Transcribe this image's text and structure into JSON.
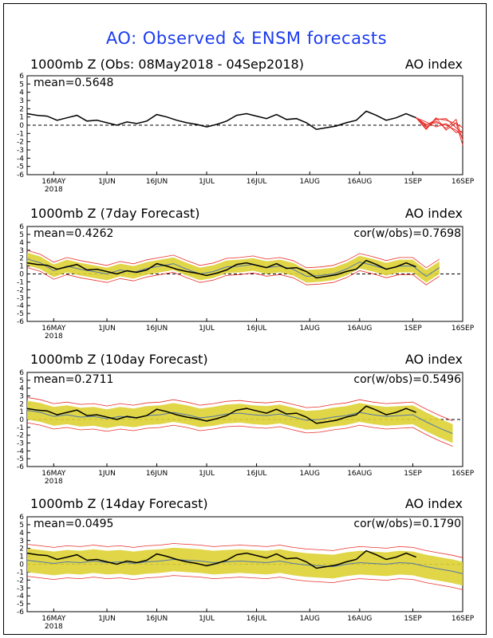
{
  "title": "AO: Observed & ENSM forecasts",
  "colors": {
    "title": "#1d3cf0",
    "observed": "#000000",
    "ensemble": "#e8302b",
    "spread": "#ddd233",
    "zero_line": "#000000"
  },
  "chart_data": [
    {
      "type": "line",
      "title": "1000mb Z (Obs: 08May2018 - 04Sep2018)",
      "index_label": "AO index",
      "stats_left": "mean=0.5648",
      "stats_right": "",
      "ylim": [
        -6,
        6
      ],
      "y_ticks": [
        6,
        5,
        4,
        3,
        2,
        1,
        0,
        -1,
        -2,
        -3,
        -4,
        -5,
        -6
      ],
      "x_ticks": [
        {
          "label": "16MAY",
          "sub": "2018",
          "day": 8
        },
        {
          "label": "1JUN",
          "sub": "",
          "day": 24
        },
        {
          "label": "16JUN",
          "sub": "",
          "day": 39
        },
        {
          "label": "1JUL",
          "sub": "",
          "day": 54
        },
        {
          "label": "16JUL",
          "sub": "",
          "day": 69
        },
        {
          "label": "1AUG",
          "sub": "",
          "day": 85
        },
        {
          "label": "16AUG",
          "sub": "",
          "day": 100
        },
        {
          "label": "1SEP",
          "sub": "",
          "day": 116
        },
        {
          "label": "16SEP",
          "sub": "",
          "day": 131
        }
      ],
      "xlim": [
        0,
        131
      ],
      "series": [
        {
          "kind": "observed",
          "x": [
            0,
            3,
            6,
            9,
            12,
            15,
            18,
            21,
            24,
            27,
            30,
            33,
            36,
            39,
            42,
            45,
            48,
            51,
            54,
            57,
            60,
            63,
            66,
            69,
            72,
            75,
            78,
            81,
            84,
            87,
            90,
            93,
            96,
            99,
            102,
            105,
            108,
            111,
            114,
            117
          ],
          "values": [
            1.4,
            1.2,
            1.1,
            0.6,
            0.9,
            1.2,
            0.5,
            0.6,
            0.3,
            0.0,
            0.4,
            0.2,
            0.5,
            1.3,
            1.0,
            0.6,
            0.3,
            0.1,
            -0.2,
            0.1,
            0.5,
            1.2,
            1.4,
            1.1,
            0.8,
            1.3,
            0.7,
            0.8,
            0.3,
            -0.5,
            -0.3,
            -0.1,
            0.3,
            0.6,
            1.7,
            1.2,
            0.6,
            0.9,
            1.4,
            0.9
          ]
        },
        {
          "kind": "ensemble",
          "x": [
            117,
            120,
            123,
            126,
            129,
            131
          ],
          "values": [
            0.9,
            0.1,
            0.3,
            0.0,
            -0.6,
            -1.4
          ]
        },
        {
          "kind": "ensemble",
          "x": [
            117,
            120,
            123,
            126,
            129,
            131
          ],
          "values": [
            0.9,
            -0.5,
            0.8,
            0.6,
            0.2,
            -0.3
          ]
        },
        {
          "kind": "ensemble",
          "x": [
            117,
            120,
            123,
            126,
            129,
            131
          ],
          "values": [
            0.9,
            -0.2,
            0.5,
            -0.4,
            0.7,
            -1.8
          ]
        },
        {
          "kind": "ensemble",
          "x": [
            117,
            120,
            123,
            126,
            129,
            131
          ],
          "values": [
            0.9,
            0.4,
            -0.2,
            0.2,
            -0.9,
            -0.7
          ]
        },
        {
          "kind": "ensemble",
          "x": [
            117,
            120,
            123,
            126,
            129,
            131
          ],
          "values": [
            0.9,
            -0.4,
            0.9,
            -0.6,
            0.3,
            -2.4
          ]
        },
        {
          "kind": "ensemble",
          "x": [
            117,
            120,
            123,
            126,
            129,
            131
          ],
          "values": [
            0.9,
            0.0,
            0.7,
            0.8,
            -0.3,
            -1.0
          ]
        }
      ]
    },
    {
      "type": "line",
      "title": "1000mb Z (7day Forecast)",
      "index_label": "AO index",
      "stats_left": "mean=0.4262",
      "stats_right": "cor(w/obs)=0.7698",
      "ylim": [
        -6,
        6
      ],
      "y_ticks": [
        6,
        5,
        4,
        3,
        2,
        1,
        0,
        -1,
        -2,
        -3,
        -4,
        -5,
        -6
      ],
      "x_ticks": [
        {
          "label": "16MAY",
          "sub": "2018",
          "day": 8
        },
        {
          "label": "1JUN",
          "sub": "",
          "day": 24
        },
        {
          "label": "16JUN",
          "sub": "",
          "day": 39
        },
        {
          "label": "1JUL",
          "sub": "",
          "day": 54
        },
        {
          "label": "16JUL",
          "sub": "",
          "day": 69
        },
        {
          "label": "1AUG",
          "sub": "",
          "day": 85
        },
        {
          "label": "16AUG",
          "sub": "",
          "day": 100
        },
        {
          "label": "1SEP",
          "sub": "",
          "day": 116
        },
        {
          "label": "16SEP",
          "sub": "",
          "day": 131
        }
      ],
      "xlim": [
        0,
        131
      ],
      "spread_width": 0.8,
      "forecast_x": [
        0,
        4,
        8,
        12,
        16,
        20,
        24,
        28,
        32,
        36,
        40,
        44,
        48,
        52,
        56,
        60,
        64,
        68,
        72,
        76,
        80,
        84,
        88,
        92,
        96,
        100,
        104,
        108,
        112,
        116,
        120,
        124
      ],
      "forecast_values": [
        1.9,
        1.4,
        0.4,
        1.0,
        0.6,
        0.3,
        0.0,
        0.5,
        0.2,
        0.7,
        1.0,
        1.3,
        0.6,
        0.0,
        0.3,
        0.9,
        1.0,
        1.2,
        0.8,
        1.0,
        0.6,
        -0.3,
        -0.2,
        0.0,
        0.6,
        1.5,
        1.1,
        0.6,
        1.0,
        1.0,
        -0.3,
        0.8
      ],
      "observed_x": [
        0,
        3,
        6,
        9,
        12,
        15,
        18,
        21,
        24,
        27,
        30,
        33,
        36,
        39,
        42,
        45,
        48,
        51,
        54,
        57,
        60,
        63,
        66,
        69,
        72,
        75,
        78,
        81,
        84,
        87,
        90,
        93,
        96,
        99,
        102,
        105,
        108,
        111,
        114,
        117
      ],
      "observed_values": [
        1.4,
        1.2,
        1.1,
        0.6,
        0.9,
        1.2,
        0.5,
        0.6,
        0.3,
        0.0,
        0.4,
        0.2,
        0.5,
        1.3,
        1.0,
        0.6,
        0.3,
        0.1,
        -0.2,
        0.1,
        0.5,
        1.2,
        1.4,
        1.1,
        0.8,
        1.3,
        0.7,
        0.8,
        0.3,
        -0.5,
        -0.3,
        -0.1,
        0.3,
        0.6,
        1.7,
        1.2,
        0.6,
        0.9,
        1.4,
        0.9
      ]
    },
    {
      "type": "line",
      "title": "1000mb Z (10day Forecast)",
      "index_label": "AO index",
      "stats_left": "mean=0.2711",
      "stats_right": "cor(w/obs)=0.5496",
      "ylim": [
        -6,
        6
      ],
      "y_ticks": [
        6,
        5,
        4,
        3,
        2,
        1,
        0,
        -1,
        -2,
        -3,
        -4,
        -5,
        -6
      ],
      "x_ticks": [
        {
          "label": "16MAY",
          "sub": "2018",
          "day": 8
        },
        {
          "label": "1JUN",
          "sub": "",
          "day": 24
        },
        {
          "label": "16JUN",
          "sub": "",
          "day": 39
        },
        {
          "label": "1JUL",
          "sub": "",
          "day": 54
        },
        {
          "label": "16JUL",
          "sub": "",
          "day": 69
        },
        {
          "label": "1AUG",
          "sub": "",
          "day": 85
        },
        {
          "label": "16AUG",
          "sub": "",
          "day": 100
        },
        {
          "label": "1SEP",
          "sub": "",
          "day": 116
        },
        {
          "label": "16SEP",
          "sub": "",
          "day": 131
        }
      ],
      "xlim": [
        0,
        131
      ],
      "spread_width": 1.2,
      "forecast_x": [
        0,
        4,
        8,
        12,
        16,
        20,
        24,
        28,
        32,
        36,
        40,
        44,
        48,
        52,
        56,
        60,
        64,
        68,
        72,
        76,
        80,
        84,
        88,
        92,
        96,
        100,
        104,
        108,
        112,
        116,
        120,
        124,
        128
      ],
      "forecast_values": [
        1.2,
        0.9,
        0.4,
        0.6,
        0.3,
        0.4,
        0.1,
        0.4,
        0.2,
        0.5,
        0.6,
        0.9,
        0.6,
        0.2,
        0.4,
        0.7,
        0.8,
        0.6,
        0.5,
        0.7,
        0.3,
        -0.1,
        0.0,
        0.3,
        0.5,
        0.9,
        0.6,
        0.4,
        0.5,
        0.6,
        -0.3,
        -1.1,
        -1.8
      ],
      "observed_x": [
        0,
        3,
        6,
        9,
        12,
        15,
        18,
        21,
        24,
        27,
        30,
        33,
        36,
        39,
        42,
        45,
        48,
        51,
        54,
        57,
        60,
        63,
        66,
        69,
        72,
        75,
        78,
        81,
        84,
        87,
        90,
        93,
        96,
        99,
        102,
        105,
        108,
        111,
        114,
        117
      ],
      "observed_values": [
        1.4,
        1.2,
        1.1,
        0.6,
        0.9,
        1.2,
        0.5,
        0.6,
        0.3,
        0.0,
        0.4,
        0.2,
        0.5,
        1.3,
        1.0,
        0.6,
        0.3,
        0.1,
        -0.2,
        0.1,
        0.5,
        1.2,
        1.4,
        1.1,
        0.8,
        1.3,
        0.7,
        0.8,
        0.3,
        -0.5,
        -0.3,
        -0.1,
        0.3,
        0.6,
        1.7,
        1.2,
        0.6,
        0.9,
        1.4,
        0.9
      ]
    },
    {
      "type": "line",
      "title": "1000mb Z (14day Forecast)",
      "index_label": "AO index",
      "stats_left": "mean=0.0495",
      "stats_right": "cor(w/obs)=0.1790",
      "ylim": [
        -6,
        6
      ],
      "y_ticks": [
        6,
        5,
        4,
        3,
        2,
        1,
        0,
        -1,
        -2,
        -3,
        -4,
        -5,
        -6
      ],
      "x_ticks": [
        {
          "label": "16MAY",
          "sub": "2018",
          "day": 8
        },
        {
          "label": "1JUN",
          "sub": "",
          "day": 24
        },
        {
          "label": "16JUN",
          "sub": "",
          "day": 39
        },
        {
          "label": "1JUL",
          "sub": "",
          "day": 54
        },
        {
          "label": "16JUL",
          "sub": "",
          "day": 69
        },
        {
          "label": "1AUG",
          "sub": "",
          "day": 85
        },
        {
          "label": "16AUG",
          "sub": "",
          "day": 100
        },
        {
          "label": "1SEP",
          "sub": "",
          "day": 116
        },
        {
          "label": "16SEP",
          "sub": "",
          "day": 131
        }
      ],
      "xlim": [
        0,
        131
      ],
      "spread_width": 1.5,
      "forecast_x": [
        0,
        4,
        8,
        12,
        16,
        20,
        24,
        28,
        32,
        36,
        40,
        44,
        48,
        52,
        56,
        60,
        64,
        68,
        72,
        76,
        80,
        84,
        88,
        92,
        96,
        100,
        104,
        108,
        112,
        116,
        120,
        124,
        128,
        131
      ],
      "forecast_values": [
        0.5,
        0.3,
        0.1,
        0.3,
        0.2,
        0.4,
        0.2,
        0.3,
        0.1,
        0.3,
        0.4,
        0.6,
        0.5,
        0.4,
        0.2,
        0.3,
        0.4,
        0.3,
        0.2,
        0.4,
        0.1,
        -0.1,
        -0.2,
        -0.3,
        0.0,
        0.2,
        0.1,
        0.0,
        0.2,
        0.1,
        -0.3,
        -0.6,
        -0.9,
        -1.2
      ],
      "observed_x": [
        0,
        3,
        6,
        9,
        12,
        15,
        18,
        21,
        24,
        27,
        30,
        33,
        36,
        39,
        42,
        45,
        48,
        51,
        54,
        57,
        60,
        63,
        66,
        69,
        72,
        75,
        78,
        81,
        84,
        87,
        90,
        93,
        96,
        99,
        102,
        105,
        108,
        111,
        114,
        117
      ],
      "observed_values": [
        1.4,
        1.2,
        1.1,
        0.6,
        0.9,
        1.2,
        0.5,
        0.6,
        0.3,
        0.0,
        0.4,
        0.2,
        0.5,
        1.3,
        1.0,
        0.6,
        0.3,
        0.1,
        -0.2,
        0.1,
        0.5,
        1.2,
        1.4,
        1.1,
        0.8,
        1.3,
        0.7,
        0.8,
        0.3,
        -0.5,
        -0.3,
        -0.1,
        0.3,
        0.6,
        1.7,
        1.2,
        0.6,
        0.9,
        1.4,
        0.9
      ]
    }
  ]
}
